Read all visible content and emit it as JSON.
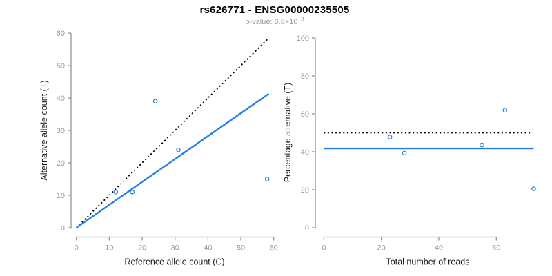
{
  "header": {
    "title": "rs626771 - ENSG00000235505",
    "subtitle_base": "p-value: 6.8×10",
    "subtitle_exponent": "−3"
  },
  "colors": {
    "accent_blue": "#2581E3",
    "identity_black": "#000000",
    "axis_line": "#8c8c8c",
    "tick_label": "#9a9a9a",
    "axis_title": "#1a1a1a",
    "subtitle_gray": "#9a9a9a"
  },
  "chart_data": [
    {
      "type": "scatter",
      "name": "allele-counts-scatter",
      "xlabel": "Reference allele count (C)",
      "ylabel": "Alternative allele count (T)",
      "xlim": [
        0,
        60
      ],
      "ylim": [
        0,
        60
      ],
      "xticks": [
        0,
        10,
        20,
        30,
        40,
        50,
        60
      ],
      "yticks": [
        0,
        10,
        20,
        30,
        40,
        50,
        60
      ],
      "grid": false,
      "legend": null,
      "points": [
        {
          "x": 12,
          "y": 11
        },
        {
          "x": 17,
          "y": 11
        },
        {
          "x": 24,
          "y": 39
        },
        {
          "x": 31,
          "y": 24
        },
        {
          "x": 58,
          "y": 15
        }
      ],
      "lines": [
        {
          "name": "identity-line",
          "style": "dotted",
          "color_key": "identity_black",
          "x1": 0,
          "y1": 0,
          "x2": 58.5,
          "y2": 58.5
        },
        {
          "name": "fit-line",
          "style": "solid",
          "color_key": "accent_blue",
          "x1": 0,
          "y1": 0,
          "x2": 58.5,
          "y2": 41.3
        }
      ]
    },
    {
      "type": "scatter",
      "name": "percentage-alternative-scatter",
      "xlabel": "Total number of reads",
      "ylabel": "Percentage alternative (T)",
      "xlim": [
        0,
        74
      ],
      "ylim": [
        0,
        100
      ],
      "xticks": [
        0,
        20,
        40,
        60
      ],
      "yticks": [
        0,
        20,
        40,
        60,
        80,
        100
      ],
      "grid": false,
      "legend": null,
      "points": [
        {
          "x": 23,
          "y": 47.8
        },
        {
          "x": 28,
          "y": 39.3
        },
        {
          "x": 55,
          "y": 43.6
        },
        {
          "x": 63,
          "y": 61.9
        },
        {
          "x": 73,
          "y": 20.5
        }
      ],
      "lines": [
        {
          "name": "expected-50pct-line",
          "style": "dotted",
          "color_key": "identity_black",
          "x1": 0,
          "y1": 50,
          "x2": 72.5,
          "y2": 50
        },
        {
          "name": "mean-pct-line",
          "style": "solid",
          "color_key": "accent_blue",
          "x1": 0,
          "y1": 41.8,
          "x2": 73,
          "y2": 41.8
        }
      ]
    }
  ]
}
